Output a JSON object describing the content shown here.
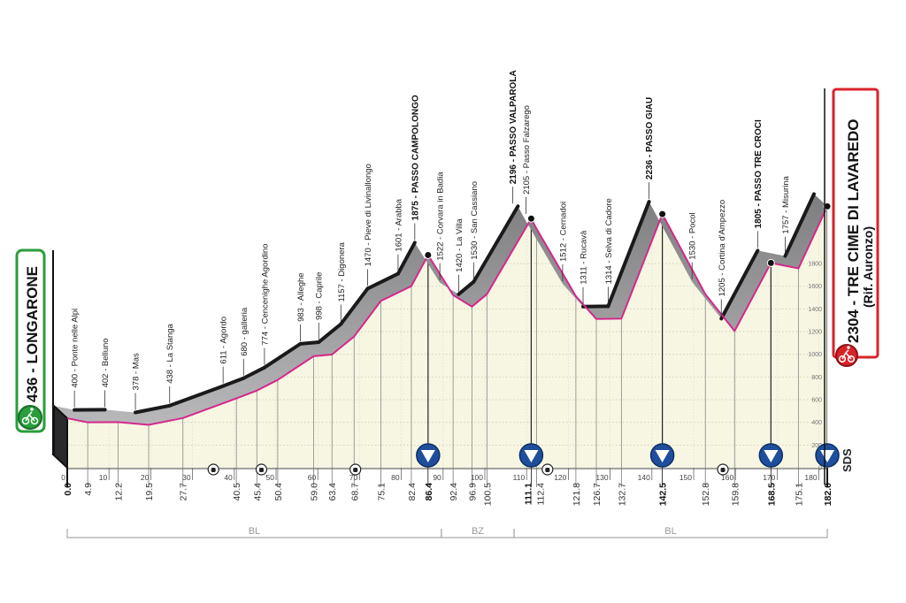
{
  "chart_data": {
    "type": "area",
    "xlabel": "",
    "ylabel": "",
    "xlim": [
      0,
      182
    ],
    "ylim": [
      0,
      1900
    ],
    "x_ticks": [
      0,
      10,
      20,
      30,
      40,
      50,
      60,
      70,
      80,
      90,
      100,
      110,
      120,
      130,
      140,
      150,
      160,
      170,
      180
    ],
    "y_ticks": [
      0,
      200,
      400,
      600,
      800,
      1000,
      1200,
      1400,
      1600,
      1800
    ],
    "grid": true,
    "colors": {
      "profile_line": "#d4288a",
      "ribbon": "#9c9c9e",
      "ribbon_edge": "#1a1a1a",
      "fill": "#f6f6e3",
      "start": "#2a9d3c",
      "finish": "#d8232a",
      "bonus": "#1f4f9c"
    },
    "start": {
      "label": "436 - LONGARONE",
      "icon": "bicycle-icon"
    },
    "finish": {
      "label": "2304 - TRE CIME DI LAVAREDO",
      "sublabel": "(Rif. Auronzo)",
      "icon": "bicycle-icon"
    },
    "points": [
      {
        "km": 0.0,
        "km_label": "0.0",
        "alt": 436,
        "label": "",
        "gpm": false,
        "bold_km": true
      },
      {
        "km": 4.9,
        "km_label": "4.9",
        "alt": 400,
        "label": "400 - Ponte nelle Alpi",
        "gpm": false
      },
      {
        "km": 12.2,
        "km_label": "12.2",
        "alt": 402,
        "label": "402 - Belluno",
        "gpm": false
      },
      {
        "km": 19.5,
        "km_label": "19.5",
        "alt": 378,
        "label": "378 - Mas",
        "gpm": false
      },
      {
        "km": 27.7,
        "km_label": "27.7",
        "alt": 438,
        "label": "438 - La Stanga",
        "gpm": false
      },
      {
        "km": 40.5,
        "km_label": "40.5",
        "alt": 611,
        "label": "611 - Agordo",
        "gpm": false
      },
      {
        "km": 45.4,
        "km_label": "45.4",
        "alt": 680,
        "label": "680 - galleria",
        "gpm": false
      },
      {
        "km": 50.4,
        "km_label": "50.4",
        "alt": 774,
        "label": "774 - Cencenighe Agordino",
        "gpm": false
      },
      {
        "km": 59.0,
        "km_label": "59.0",
        "alt": 983,
        "label": "983 - Alleghe",
        "gpm": false
      },
      {
        "km": 63.4,
        "km_label": "63.4",
        "alt": 998,
        "label": "998 - Caprile",
        "gpm": false
      },
      {
        "km": 68.7,
        "km_label": "68.7",
        "alt": 1157,
        "label": "1157 - Digonera",
        "gpm": false
      },
      {
        "km": 75.1,
        "km_label": "75.1",
        "alt": 1470,
        "label": "1470 - Pieve di Livinallongo",
        "gpm": false
      },
      {
        "km": 82.4,
        "km_label": "82.4",
        "alt": 1601,
        "label": "1601 - Arabba",
        "gpm": false
      },
      {
        "km": 86.4,
        "km_label": "86.4",
        "alt": 1875,
        "label": "1875 - PASSO CAMPOLONGO",
        "gpm": true
      },
      {
        "km": 92.4,
        "km_label": "92.4",
        "alt": 1522,
        "label": "1522 - Corvara in Badia",
        "gpm": false
      },
      {
        "km": 96.9,
        "km_label": "96.9",
        "alt": 1420,
        "label": "1420 - La Villa",
        "gpm": false
      },
      {
        "km": 100.5,
        "km_label": "100.5",
        "alt": 1530,
        "label": "1530 - San Cassiano",
        "gpm": false
      },
      {
        "km": 111.1,
        "km_label": "111.1",
        "alt": 2196,
        "label": "2196 - PASSO VALPAROLA",
        "gpm": true
      },
      {
        "km": 112.4,
        "km_label": "112.4",
        "alt": 2105,
        "label": "2105 - Passo Falzarego",
        "gpm": false
      },
      {
        "km": 121.8,
        "km_label": "121.8",
        "alt": 1512,
        "label": "1512 - Cernadoi",
        "gpm": false
      },
      {
        "km": 126.7,
        "km_label": "126.7",
        "alt": 1311,
        "label": "1311 - Rucavà",
        "gpm": false
      },
      {
        "km": 132.7,
        "km_label": "132.7",
        "alt": 1314,
        "label": "1314 - Selva di Cadore",
        "gpm": false
      },
      {
        "km": 142.5,
        "km_label": "142.5",
        "alt": 2236,
        "label": "2236 - PASSO GIAU",
        "gpm": true
      },
      {
        "km": 152.8,
        "km_label": "152.8",
        "alt": 1530,
        "label": "1530 - Pocol",
        "gpm": false
      },
      {
        "km": 159.8,
        "km_label": "159.8",
        "alt": 1205,
        "label": "1205 - Cortina d'Ampezzo",
        "gpm": false
      },
      {
        "km": 168.5,
        "km_label": "168.5",
        "alt": 1805,
        "label": "1805 - PASSO TRE CROCI",
        "gpm": true
      },
      {
        "km": 175.1,
        "km_label": "175.1",
        "alt": 1757,
        "label": "1757 - Misurina",
        "gpm": false
      },
      {
        "km": 182.0,
        "km_label": "182.0",
        "alt": 2304,
        "label": "",
        "gpm": true,
        "bold_km": true
      }
    ],
    "bonus_markers_km": [
      86.4,
      111.1,
      142.5,
      168.5,
      182.0
    ],
    "tunnel_markers_km": [
      35,
      46.5,
      69,
      115,
      157
    ],
    "regions": [
      {
        "label": "BL",
        "from_km": 0,
        "to_km": 89.6
      },
      {
        "label": "BZ",
        "from_km": 89.6,
        "to_km": 107.0
      },
      {
        "label": "BL",
        "from_km": 107.0,
        "to_km": 182.0
      }
    ],
    "logo": "SDS"
  }
}
